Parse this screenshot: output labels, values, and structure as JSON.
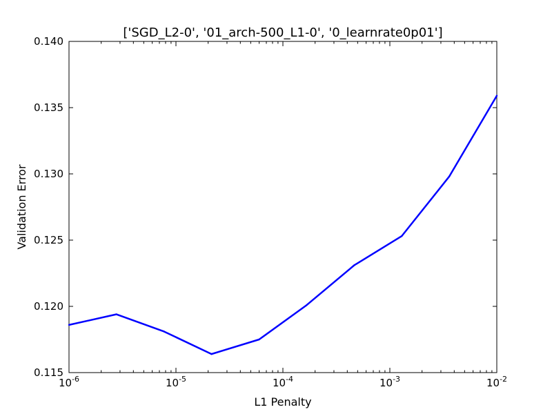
{
  "chart_data": {
    "type": "line",
    "title": "['SGD_L2-0', '01_arch-500_L1-0', '0_learnrate0p01']",
    "xlabel": "L1 Penalty",
    "ylabel": "Validation Error",
    "xscale": "log",
    "xlim": [
      1e-06,
      0.01
    ],
    "ylim": [
      0.115,
      0.14
    ],
    "grid": false,
    "legend": "none",
    "colors": {
      "series": "#0000ff",
      "axes": "#000000",
      "background": "#ffffff"
    },
    "x_ticks": [
      {
        "base": "10",
        "exp": "-6",
        "value": 1e-06
      },
      {
        "base": "10",
        "exp": "-5",
        "value": 1e-05
      },
      {
        "base": "10",
        "exp": "-4",
        "value": 0.0001
      },
      {
        "base": "10",
        "exp": "-3",
        "value": 0.001
      },
      {
        "base": "10",
        "exp": "-2",
        "value": 0.01
      }
    ],
    "y_ticks": [
      {
        "label": "0.115",
        "value": 0.115
      },
      {
        "label": "0.120",
        "value": 0.12
      },
      {
        "label": "0.125",
        "value": 0.125
      },
      {
        "label": "0.130",
        "value": 0.13
      },
      {
        "label": "0.135",
        "value": 0.135
      },
      {
        "label": "0.140",
        "value": 0.14
      }
    ],
    "series": [
      {
        "x": [
          1e-06,
          2.78e-06,
          7.74e-06,
          2.15e-05,
          5.99e-05,
          0.000167,
          0.000464,
          0.00129,
          0.00359,
          0.01
        ],
        "y": [
          0.1186,
          0.1194,
          0.1181,
          0.1164,
          0.1175,
          0.1201,
          0.1231,
          0.1253,
          0.1298,
          0.1359
        ]
      }
    ]
  }
}
